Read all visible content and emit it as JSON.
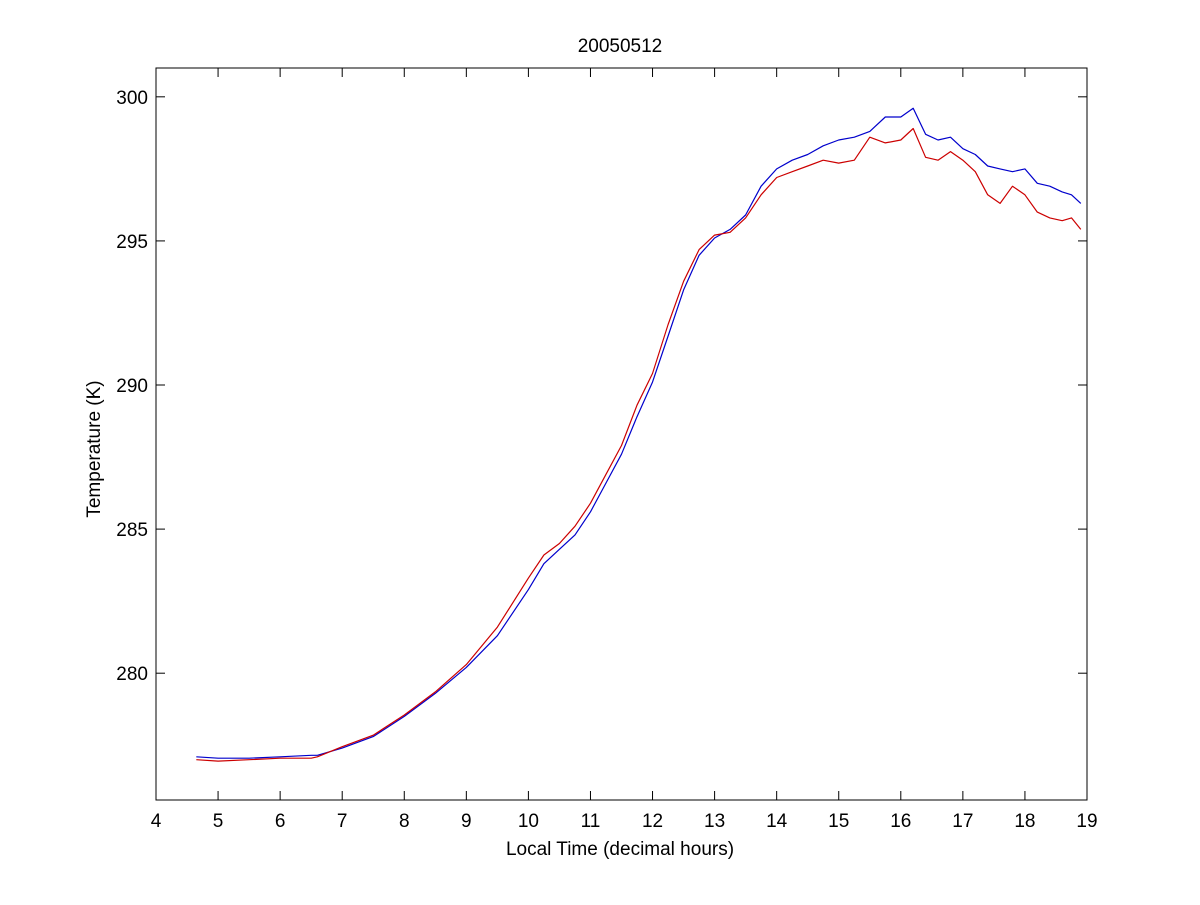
{
  "colors": {
    "background": "#ffffff",
    "axes": "#000000"
  },
  "chart_data": {
    "type": "line",
    "title": "20050512",
    "xlabel": "Local Time (decimal hours)",
    "ylabel": "Temperature (K)",
    "xlim": [
      4,
      19
    ],
    "ylim": [
      275.6,
      301
    ],
    "xticks": [
      4,
      5,
      6,
      7,
      8,
      9,
      10,
      11,
      12,
      13,
      14,
      15,
      16,
      17,
      18,
      19
    ],
    "yticks": [
      280,
      285,
      290,
      295,
      300
    ],
    "grid": false,
    "legend": "none",
    "box": true,
    "series": [
      {
        "color": "#0000cc",
        "x": [
          4.65,
          5.0,
          5.5,
          6.0,
          6.5,
          6.6,
          7.0,
          7.5,
          8.0,
          8.5,
          9.0,
          9.5,
          10.0,
          10.25,
          10.5,
          10.75,
          11.0,
          11.25,
          11.5,
          11.75,
          12.0,
          12.25,
          12.5,
          12.75,
          13.0,
          13.25,
          13.5,
          13.75,
          14.0,
          14.25,
          14.5,
          14.75,
          15.0,
          15.25,
          15.5,
          15.75,
          16.0,
          16.2,
          16.4,
          16.6,
          16.8,
          17.0,
          17.2,
          17.4,
          17.6,
          17.8,
          18.0,
          18.2,
          18.4,
          18.6,
          18.75,
          18.9
        ],
        "y": [
          277.1,
          277.05,
          277.05,
          277.1,
          277.15,
          277.15,
          277.4,
          277.8,
          278.5,
          279.3,
          280.2,
          281.3,
          282.9,
          283.8,
          284.3,
          284.8,
          285.6,
          286.6,
          287.6,
          288.9,
          290.1,
          291.7,
          293.3,
          294.5,
          295.1,
          295.4,
          295.9,
          296.9,
          297.5,
          297.8,
          298.0,
          298.3,
          298.5,
          298.6,
          298.8,
          299.3,
          299.3,
          299.6,
          298.7,
          298.5,
          298.6,
          298.2,
          298.0,
          297.6,
          297.5,
          297.4,
          297.5,
          297.0,
          296.9,
          296.7,
          296.6,
          296.3
        ]
      },
      {
        "color": "#cc0000",
        "x": [
          4.65,
          5.0,
          5.5,
          6.0,
          6.5,
          6.6,
          7.0,
          7.5,
          8.0,
          8.5,
          9.0,
          9.5,
          10.0,
          10.25,
          10.5,
          10.75,
          11.0,
          11.25,
          11.5,
          11.75,
          12.0,
          12.25,
          12.5,
          12.75,
          13.0,
          13.25,
          13.5,
          13.75,
          14.0,
          14.25,
          14.5,
          14.75,
          15.0,
          15.25,
          15.5,
          15.75,
          16.0,
          16.2,
          16.4,
          16.6,
          16.8,
          17.0,
          17.2,
          17.4,
          17.6,
          17.8,
          18.0,
          18.2,
          18.4,
          18.6,
          18.75,
          18.9
        ],
        "y": [
          277.0,
          276.95,
          277.0,
          277.05,
          277.05,
          277.1,
          277.45,
          277.85,
          278.55,
          279.35,
          280.3,
          281.6,
          283.3,
          284.1,
          284.5,
          285.1,
          285.9,
          286.9,
          287.9,
          289.3,
          290.4,
          292.1,
          293.6,
          294.7,
          295.2,
          295.3,
          295.8,
          296.6,
          297.2,
          297.4,
          297.6,
          297.8,
          297.7,
          297.8,
          298.6,
          298.4,
          298.5,
          298.9,
          297.9,
          297.8,
          298.1,
          297.8,
          297.4,
          296.6,
          296.3,
          296.9,
          296.6,
          296.0,
          295.8,
          295.7,
          295.8,
          295.4
        ]
      }
    ]
  }
}
